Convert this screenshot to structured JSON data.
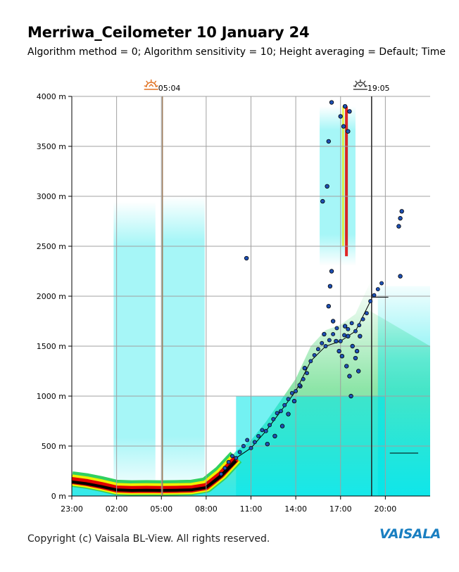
{
  "title": "Merriwa_Ceilometer 10 January 24",
  "subtitle": "Algorithm method = 0; Algorithm sensitivity = 10; Height averaging = Default; Time",
  "footer": "Copyright (c) Vaisala BL-View. All rights reserved.",
  "brand": "VAISALA",
  "colors": {
    "grid": "#a0a0a0",
    "cyan": "#00e5e8",
    "green": "#30d060",
    "yellow": "#f0f000",
    "red": "#e00000",
    "marker": "#1e50b4",
    "sunrise": "#e07020",
    "sunset": "#404040"
  },
  "chart_data": {
    "type": "heatmap",
    "ylim": [
      0,
      4000
    ],
    "xlim_hours": [
      23,
      47
    ],
    "y_ticks": [
      "0 m",
      "500 m",
      "1000 m",
      "1500 m",
      "2000 m",
      "2500 m",
      "3000 m",
      "3500 m",
      "4000 m"
    ],
    "y_tick_values": [
      0,
      500,
      1000,
      1500,
      2000,
      2500,
      3000,
      3500,
      4000
    ],
    "x_ticks": [
      "23:00",
      "02:00",
      "05:00",
      "08:00",
      "11:00",
      "14:00",
      "17:00",
      "20:00"
    ],
    "x_tick_values": [
      23,
      26,
      29,
      32,
      35,
      38,
      41,
      44
    ],
    "sunrise": {
      "label": "05:04",
      "hour": 29.07,
      "icon": "sunrise-icon"
    },
    "sunset": {
      "label": "19:05",
      "hour": 43.08,
      "icon": "sunset-icon"
    },
    "boundary_layer_height": [
      {
        "hour": 23.0,
        "height": 160
      },
      {
        "hour": 24.0,
        "height": 140
      },
      {
        "hour": 25.0,
        "height": 110
      },
      {
        "hour": 26.0,
        "height": 75
      },
      {
        "hour": 27.0,
        "height": 70
      },
      {
        "hour": 28.0,
        "height": 72
      },
      {
        "hour": 29.0,
        "height": 70
      },
      {
        "hour": 30.0,
        "height": 72
      },
      {
        "hour": 31.0,
        "height": 75
      },
      {
        "hour": 32.0,
        "height": 100
      },
      {
        "hour": 33.0,
        "height": 220
      },
      {
        "hour": 34.0,
        "height": 380
      },
      {
        "hour": 35.0,
        "height": 480
      },
      {
        "hour": 36.0,
        "height": 650
      },
      {
        "hour": 37.0,
        "height": 850
      },
      {
        "hour": 38.0,
        "height": 1050
      },
      {
        "hour": 39.0,
        "height": 1350
      },
      {
        "hour": 40.0,
        "height": 1500
      },
      {
        "hour": 41.0,
        "height": 1550
      },
      {
        "hour": 42.0,
        "height": 1650
      },
      {
        "hour": 43.0,
        "height": 1950
      }
    ],
    "cloud_detections": [
      {
        "hour": 34.7,
        "height": 2380
      },
      {
        "hour": 39.9,
        "height": 1620
      },
      {
        "hour": 40.2,
        "height": 1900
      },
      {
        "hour": 40.3,
        "height": 2100
      },
      {
        "hour": 40.4,
        "height": 2250
      },
      {
        "hour": 40.5,
        "height": 1750
      },
      {
        "hour": 40.7,
        "height": 1550
      },
      {
        "hour": 40.9,
        "height": 1450
      },
      {
        "hour": 41.1,
        "height": 1400
      },
      {
        "hour": 41.3,
        "height": 1700
      },
      {
        "hour": 41.5,
        "height": 1600
      },
      {
        "hour": 41.8,
        "height": 1500
      },
      {
        "hour": 42.0,
        "height": 1380
      },
      {
        "hour": 42.2,
        "height": 1250
      },
      {
        "hour": 42.3,
        "height": 1600
      },
      {
        "hour": 40.1,
        "height": 3100
      },
      {
        "hour": 40.2,
        "height": 3550
      },
      {
        "hour": 40.4,
        "height": 3940
      },
      {
        "hour": 41.0,
        "height": 3800
      },
      {
        "hour": 41.2,
        "height": 3700
      },
      {
        "hour": 41.3,
        "height": 3900
      },
      {
        "hour": 41.5,
        "height": 3650
      },
      {
        "hour": 41.6,
        "height": 3850
      },
      {
        "hour": 39.8,
        "height": 2950
      },
      {
        "hour": 38.6,
        "height": 1280
      },
      {
        "hour": 38.3,
        "height": 1100
      },
      {
        "hour": 37.9,
        "height": 950
      },
      {
        "hour": 37.5,
        "height": 820
      },
      {
        "hour": 37.1,
        "height": 700
      },
      {
        "hour": 36.6,
        "height": 600
      },
      {
        "hour": 36.1,
        "height": 520
      },
      {
        "hour": 45.0,
        "height": 2780
      },
      {
        "hour": 45.1,
        "height": 2850
      },
      {
        "hour": 45.0,
        "height": 2200
      },
      {
        "hour": 44.9,
        "height": 2700
      },
      {
        "hour": 41.4,
        "height": 1300
      },
      {
        "hour": 41.6,
        "height": 1200
      },
      {
        "hour": 42.1,
        "height": 1450
      },
      {
        "hour": 41.7,
        "height": 1000
      }
    ]
  }
}
